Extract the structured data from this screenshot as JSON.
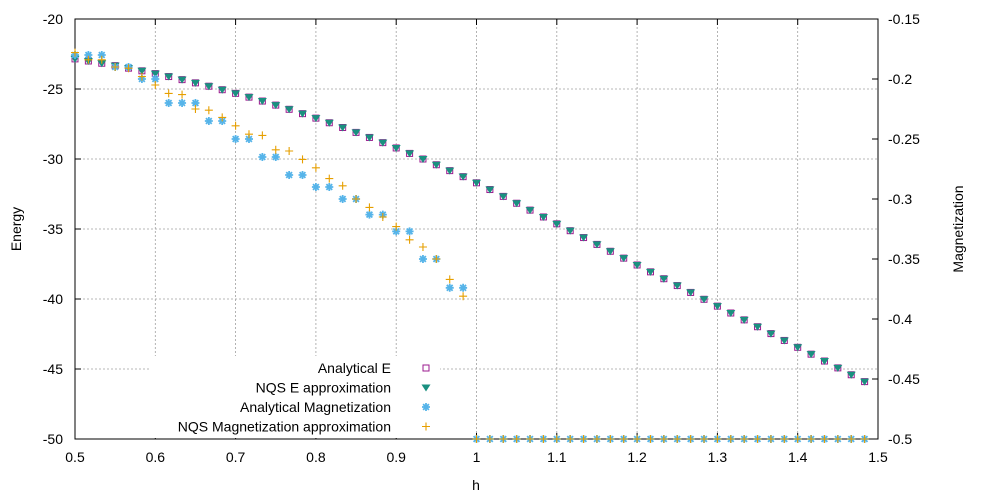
{
  "chart_data": {
    "type": "scatter",
    "xlabel": "h",
    "ylabel": "Energy",
    "y2label": "Magnetization",
    "xlim": [
      0.5,
      1.5
    ],
    "ylim": [
      -50,
      -20
    ],
    "y2lim": [
      -0.5,
      -0.15
    ],
    "xticks": [
      "0.5",
      "0.6",
      "0.7",
      "0.8",
      "0.9",
      "1",
      "1.1",
      "1.2",
      "1.3",
      "1.4",
      "1.5"
    ],
    "yticks": [
      "-50",
      "-45",
      "-40",
      "-35",
      "-30",
      "-25",
      "-20"
    ],
    "y2ticks": [
      "-0.5",
      "-0.45",
      "-0.4",
      "-0.35",
      "-0.3",
      "-0.25",
      "-0.2",
      "-0.15"
    ],
    "grid": true,
    "legend_position": "bottom-center",
    "x": [
      0.5,
      0.51667,
      0.53333,
      0.55,
      0.56667,
      0.58333,
      0.6,
      0.61667,
      0.63333,
      0.65,
      0.66667,
      0.68333,
      0.7,
      0.71667,
      0.73333,
      0.75,
      0.76667,
      0.78333,
      0.8,
      0.81667,
      0.83333,
      0.85,
      0.86667,
      0.88333,
      0.9,
      0.91667,
      0.93333,
      0.95,
      0.96667,
      0.98333,
      1.0,
      1.01667,
      1.03333,
      1.05,
      1.06667,
      1.08333,
      1.1,
      1.11667,
      1.13333,
      1.15,
      1.16667,
      1.18333,
      1.2,
      1.21667,
      1.23333,
      1.25,
      1.26667,
      1.28333,
      1.3,
      1.31667,
      1.33333,
      1.35,
      1.36667,
      1.38333,
      1.4,
      1.41667,
      1.43333,
      1.45,
      1.46667,
      1.48333
    ],
    "series": [
      {
        "name": "Analytical E",
        "axis": "y",
        "marker": "open-square",
        "color": "#9b1b8f",
        "values": [
          -22.85,
          -23.0,
          -23.16,
          -23.33,
          -23.51,
          -23.7,
          -23.9,
          -24.11,
          -24.33,
          -24.56,
          -24.8,
          -25.05,
          -25.31,
          -25.58,
          -25.86,
          -26.15,
          -26.45,
          -26.76,
          -27.08,
          -27.41,
          -27.75,
          -28.1,
          -28.46,
          -28.83,
          -29.21,
          -29.6,
          -30.0,
          -30.41,
          -30.83,
          -31.26,
          -31.7,
          -32.18,
          -32.67,
          -33.16,
          -33.65,
          -34.14,
          -34.63,
          -35.12,
          -35.61,
          -36.1,
          -36.59,
          -37.08,
          -37.57,
          -38.06,
          -38.55,
          -39.04,
          -39.53,
          -40.02,
          -40.51,
          -41.0,
          -41.49,
          -41.98,
          -42.47,
          -42.96,
          -43.45,
          -43.94,
          -44.43,
          -44.92,
          -45.41,
          -45.9
        ]
      },
      {
        "name": "NQS E approximation",
        "axis": "y",
        "marker": "filled-triangle-down",
        "color": "#1a9080",
        "values": [
          -22.85,
          -23.0,
          -23.16,
          -23.33,
          -23.51,
          -23.7,
          -23.9,
          -24.11,
          -24.33,
          -24.56,
          -24.8,
          -25.05,
          -25.31,
          -25.58,
          -25.86,
          -26.15,
          -26.45,
          -26.76,
          -27.08,
          -27.41,
          -27.75,
          -28.1,
          -28.46,
          -28.83,
          -29.21,
          -29.6,
          -30.0,
          -30.41,
          -30.83,
          -31.26,
          -31.7,
          -32.18,
          -32.67,
          -33.16,
          -33.65,
          -34.14,
          -34.63,
          -35.12,
          -35.61,
          -36.1,
          -36.59,
          -37.08,
          -37.57,
          -38.06,
          -38.55,
          -39.04,
          -39.53,
          -40.02,
          -40.51,
          -41.0,
          -41.49,
          -41.98,
          -42.47,
          -42.96,
          -43.45,
          -43.94,
          -44.43,
          -44.92,
          -45.41,
          -45.9
        ]
      },
      {
        "name": "Analytical Magnetization",
        "axis": "y2",
        "marker": "star",
        "color": "#56b4e9",
        "values": [
          -0.18,
          -0.18,
          -0.18,
          -0.19,
          -0.19,
          -0.2,
          -0.2,
          -0.22,
          -0.22,
          -0.22,
          -0.235,
          -0.235,
          -0.25,
          -0.25,
          -0.265,
          -0.265,
          -0.28,
          -0.28,
          -0.29,
          -0.29,
          -0.3,
          -0.3,
          -0.313,
          -0.313,
          -0.327,
          -0.327,
          -0.35,
          -0.35,
          -0.374,
          -0.374,
          -0.5,
          -0.5,
          -0.5,
          -0.5,
          -0.5,
          -0.5,
          -0.5,
          -0.5,
          -0.5,
          -0.5,
          -0.5,
          -0.5,
          -0.5,
          -0.5,
          -0.5,
          -0.5,
          -0.5,
          -0.5,
          -0.5,
          -0.5,
          -0.5,
          -0.5,
          -0.5,
          -0.5,
          -0.5,
          -0.5,
          -0.5,
          -0.5,
          -0.5,
          -0.5
        ]
      },
      {
        "name": "NQS Magnetization approximation",
        "axis": "y2",
        "marker": "plus",
        "color": "#e69f00",
        "values": [
          -0.178,
          -0.184,
          -0.184,
          -0.19,
          -0.191,
          -0.198,
          -0.205,
          -0.212,
          -0.213,
          -0.225,
          -0.226,
          -0.232,
          -0.239,
          -0.246,
          -0.247,
          -0.259,
          -0.26,
          -0.267,
          -0.274,
          -0.283,
          -0.289,
          -0.3,
          -0.307,
          -0.315,
          -0.323,
          -0.334,
          -0.34,
          -0.35,
          -0.367,
          -0.381,
          -0.5,
          -0.5,
          -0.5,
          -0.5,
          -0.5,
          -0.5,
          -0.5,
          -0.5,
          -0.5,
          -0.5,
          -0.5,
          -0.5,
          -0.5,
          -0.5,
          -0.5,
          -0.5,
          -0.5,
          -0.5,
          -0.5,
          -0.5,
          -0.5,
          -0.5,
          -0.5,
          -0.5,
          -0.5,
          -0.5,
          -0.5,
          -0.5,
          -0.5,
          -0.5
        ]
      }
    ]
  }
}
